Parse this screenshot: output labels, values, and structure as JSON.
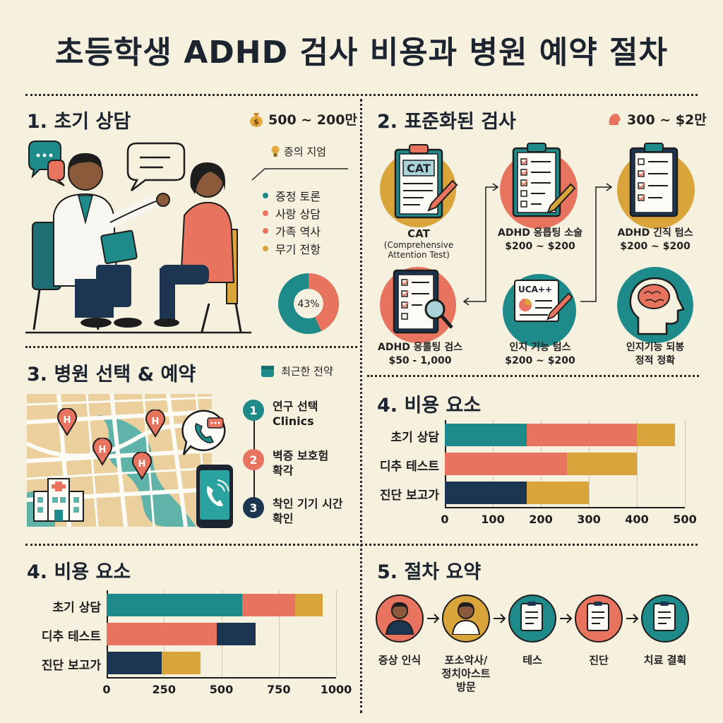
{
  "title": "초등학생 ADHD 검사 비용과 병원 예약 절차",
  "section1": {
    "title": "1. 초기 상담",
    "cost": "500 ~ 200만",
    "subtitle": "증의 지엄",
    "items": [
      "증정 토론",
      "사랑 상담",
      "가족 역사",
      "무기 전항"
    ],
    "item_colors": [
      "#1f8a8a",
      "#e8735e",
      "#e8735e",
      "#d9a43a"
    ],
    "donut_value": 43,
    "donut_label": "43%"
  },
  "section2": {
    "title": "2. 표준화된 검사",
    "cost": "300 ~ $2만",
    "tests": [
      {
        "badge": "CAT",
        "label": "CAT",
        "sub": "(Comprehensive Attention Test)"
      },
      {
        "label": "ADHD 응릅팅 소술",
        "price": "$200 ~ $200"
      },
      {
        "label": "ADHD 긴직 텀스",
        "price": "$200 ~ $200"
      },
      {
        "label": "ADHD 응롤팅 검스",
        "price": "$50 - 1,000"
      },
      {
        "badge": "UCA++",
        "label": "인지 기능 텀스",
        "price": "$200 ~ $200"
      },
      {
        "label": "인지기능 되봉",
        "sub": "정적 정확"
      }
    ]
  },
  "section3": {
    "title": "3. 병원 선택 & 예약",
    "tag": "최근한 전약",
    "steps": [
      {
        "num": "1",
        "text": [
          "연구 선택",
          "Clinics"
        ]
      },
      {
        "num": "2",
        "text": [
          "벽증 보호험",
          "확각"
        ]
      },
      {
        "num": "3",
        "text": [
          "착인 기기 시간",
          "확인"
        ]
      }
    ]
  },
  "chart_right": {
    "title": "4. 비용 요소",
    "chart_data": {
      "type": "bar",
      "stacked": true,
      "orientation": "horizontal",
      "categories": [
        "초기 상담",
        "디추 테스트",
        "진단 보고가"
      ],
      "series": [
        {
          "color": "#1f8a8a",
          "values": [
            170,
            0,
            0
          ]
        },
        {
          "color": "#e8735e",
          "values": [
            230,
            255,
            0
          ]
        },
        {
          "color": "#1c3550",
          "values": [
            0,
            0,
            170
          ]
        },
        {
          "color": "#d9a43a",
          "values": [
            80,
            145,
            130
          ]
        }
      ],
      "xlim": [
        0,
        500
      ],
      "xticks": [
        "0",
        "100",
        "200",
        "300",
        "400",
        "500"
      ],
      "grid": true
    }
  },
  "chart_left": {
    "title": "4. 비용 요소",
    "chart_data": {
      "type": "bar",
      "stacked": true,
      "orientation": "horizontal",
      "categories": [
        "초기 상담",
        "디추 테스트",
        "진단 보고가"
      ],
      "series": [
        {
          "color": "#1f8a8a",
          "values": [
            590,
            0,
            0
          ]
        },
        {
          "color": "#e8735e",
          "values": [
            230,
            480,
            0
          ]
        },
        {
          "color": "#1c3550",
          "values": [
            0,
            170,
            240
          ]
        },
        {
          "color": "#d9a43a",
          "values": [
            120,
            0,
            170
          ]
        }
      ],
      "xlim": [
        0,
        1000
      ],
      "xticks": [
        "0",
        "250",
        "500",
        "750",
        "1000"
      ],
      "grid": true
    }
  },
  "section5": {
    "title": "5. 절차 요약",
    "steps": [
      {
        "label": [
          "증상 인식"
        ],
        "color": "#e8735e"
      },
      {
        "label": [
          "포소악사/",
          "정치아스트",
          "방문"
        ],
        "color": "#d9a43a"
      },
      {
        "label": [
          "테스"
        ],
        "color": "#1f8a8a"
      },
      {
        "label": [
          "진단"
        ],
        "color": "#e8735e"
      },
      {
        "label": [
          "치료 결획"
        ],
        "color": "#1f8a8a"
      }
    ]
  }
}
